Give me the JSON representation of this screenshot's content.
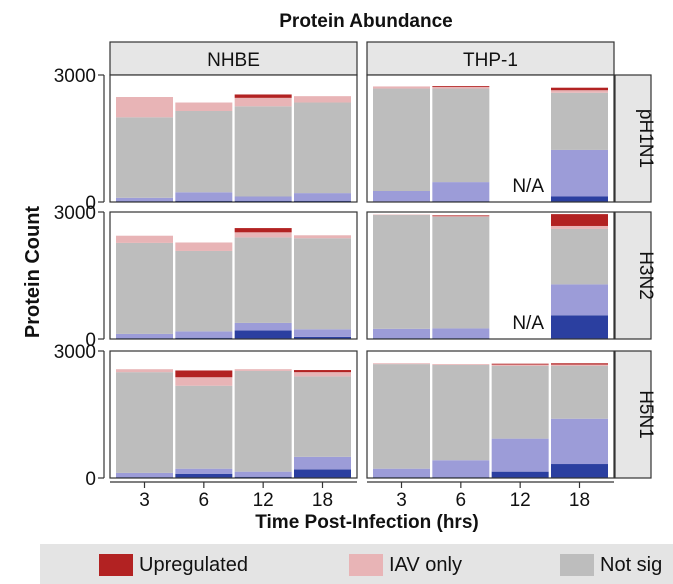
{
  "colors": {
    "upregulated": "#b22222",
    "iav_only": "#e8b4b6",
    "not_significant": "#bdbdbd",
    "light_blue": "#9c9cd8",
    "dark_blue": "#2b3fa0",
    "strip_bg": "#e6e6e6",
    "legend_bg": "#e4e4e4"
  },
  "chart_data": {
    "type": "bar",
    "stacked": true,
    "title": "Protein Abundance",
    "xlabel": "Time Post-Infection (hrs)",
    "ylabel": "Protein Count",
    "ylim": [
      0,
      3000
    ],
    "y_ticks": [
      "0",
      "3000"
    ],
    "categories": [
      "3",
      "6",
      "12",
      "18"
    ],
    "columns": [
      "NHBE",
      "THP-1"
    ],
    "rows": [
      "pH1N1",
      "H3N2",
      "H5N1"
    ],
    "na_label": "N/A",
    "legend": [
      {
        "key": "upregulated",
        "label": "Upregulated"
      },
      {
        "key": "iav_only",
        "label": "IAV only"
      },
      {
        "key": "not_significant",
        "label": "Not sig"
      }
    ],
    "panels": [
      {
        "row": "pH1N1",
        "column": "NHBE",
        "bars": [
          {
            "x": "3",
            "dark_blue": 20,
            "light_blue": 80,
            "not_significant": 1900,
            "iav_only": 480,
            "upregulated": 0
          },
          {
            "x": "6",
            "dark_blue": 30,
            "light_blue": 200,
            "not_significant": 1920,
            "iav_only": 200,
            "upregulated": 0
          },
          {
            "x": "12",
            "dark_blue": 30,
            "light_blue": 100,
            "not_significant": 2130,
            "iav_only": 200,
            "upregulated": 80
          },
          {
            "x": "18",
            "dark_blue": 30,
            "light_blue": 180,
            "not_significant": 2140,
            "iav_only": 150,
            "upregulated": 0
          }
        ]
      },
      {
        "row": "pH1N1",
        "column": "THP-1",
        "bars": [
          {
            "x": "3",
            "dark_blue": 10,
            "light_blue": 250,
            "not_significant": 2420,
            "iav_only": 50,
            "upregulated": 0
          },
          {
            "x": "6",
            "dark_blue": 20,
            "light_blue": 450,
            "not_significant": 2210,
            "iav_only": 40,
            "upregulated": 20
          },
          {
            "x": "12",
            "na": true
          },
          {
            "x": "18",
            "dark_blue": 130,
            "light_blue": 1100,
            "not_significant": 1350,
            "iav_only": 60,
            "upregulated": 60
          }
        ]
      },
      {
        "row": "H3N2",
        "column": "NHBE",
        "bars": [
          {
            "x": "3",
            "dark_blue": 20,
            "light_blue": 100,
            "not_significant": 2150,
            "iav_only": 170,
            "upregulated": 0
          },
          {
            "x": "6",
            "dark_blue": 30,
            "light_blue": 150,
            "not_significant": 1900,
            "iav_only": 200,
            "upregulated": 0
          },
          {
            "x": "12",
            "dark_blue": 200,
            "light_blue": 180,
            "not_significant": 2020,
            "iav_only": 120,
            "upregulated": 100
          },
          {
            "x": "18",
            "dark_blue": 50,
            "light_blue": 180,
            "not_significant": 2150,
            "iav_only": 70,
            "upregulated": 0
          }
        ]
      },
      {
        "row": "H3N2",
        "column": "THP-1",
        "bars": [
          {
            "x": "3",
            "dark_blue": 20,
            "light_blue": 220,
            "not_significant": 2690,
            "iav_only": 10,
            "upregulated": 0
          },
          {
            "x": "6",
            "dark_blue": 20,
            "light_blue": 230,
            "not_significant": 2640,
            "iav_only": 10,
            "upregulated": 20
          },
          {
            "x": "12",
            "na": true
          },
          {
            "x": "18",
            "dark_blue": 560,
            "light_blue": 730,
            "not_significant": 1310,
            "iav_only": 70,
            "upregulated": 280
          }
        ]
      },
      {
        "row": "H5N1",
        "column": "NHBE",
        "bars": [
          {
            "x": "3",
            "dark_blue": 20,
            "light_blue": 100,
            "not_significant": 2380,
            "iav_only": 70,
            "upregulated": 0
          },
          {
            "x": "6",
            "dark_blue": 100,
            "light_blue": 120,
            "not_significant": 1960,
            "iav_only": 200,
            "upregulated": 160
          },
          {
            "x": "12",
            "dark_blue": 30,
            "light_blue": 120,
            "not_significant": 2380,
            "iav_only": 40,
            "upregulated": 0
          },
          {
            "x": "18",
            "dark_blue": 200,
            "light_blue": 300,
            "not_significant": 1900,
            "iav_only": 100,
            "upregulated": 50
          }
        ]
      },
      {
        "row": "H5N1",
        "column": "THP-1",
        "bars": [
          {
            "x": "3",
            "dark_blue": 20,
            "light_blue": 200,
            "not_significant": 2470,
            "iav_only": 20,
            "upregulated": 0
          },
          {
            "x": "6",
            "dark_blue": 20,
            "light_blue": 400,
            "not_significant": 2250,
            "iav_only": 20,
            "upregulated": 0
          },
          {
            "x": "12",
            "dark_blue": 150,
            "light_blue": 780,
            "not_significant": 1720,
            "iav_only": 30,
            "upregulated": 20
          },
          {
            "x": "18",
            "dark_blue": 330,
            "light_blue": 1070,
            "not_significant": 1250,
            "iav_only": 30,
            "upregulated": 30
          }
        ]
      }
    ]
  }
}
